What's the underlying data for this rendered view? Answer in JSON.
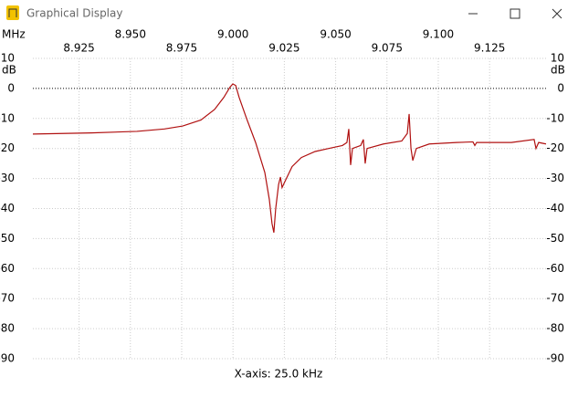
{
  "window": {
    "title": "Graphical Display"
  },
  "chart_data": {
    "type": "line",
    "x_label": "MHz",
    "y_label": "dB",
    "annotation": "X-axis: 25.0 kHz",
    "xlim": [
      8.9025,
      9.1525
    ],
    "xticks": [
      {
        "value": 8.925,
        "label": "8.925"
      },
      {
        "value": 8.95,
        "label": "8.950"
      },
      {
        "value": 8.975,
        "label": "8.975"
      },
      {
        "value": 9,
        "label": "9.000"
      },
      {
        "value": 9.025,
        "label": "9.025"
      },
      {
        "value": 9.05,
        "label": "9.050"
      },
      {
        "value": 9.075,
        "label": "9.075"
      },
      {
        "value": 9.1,
        "label": "9.100"
      },
      {
        "value": 9.125,
        "label": "9.125"
      }
    ],
    "ylim": [
      -90,
      10
    ],
    "yticks": [
      10,
      0,
      -10,
      -20,
      -30,
      -40,
      -50,
      -60,
      -70,
      -80,
      -90
    ],
    "grid": true,
    "series": [
      {
        "color": "#b01010",
        "x": [
          8.9025,
          8.931,
          8.9532,
          8.9666,
          8.9755,
          8.9844,
          8.991,
          8.9955,
          8.9986,
          8.9999,
          9.0013,
          9.003,
          9.0066,
          9.011,
          9.0155,
          9.0177,
          9.019,
          9.0199,
          9.0208,
          9.0222,
          9.0231,
          9.0239,
          9.0253,
          9.0288,
          9.0333,
          9.04,
          9.0466,
          9.0533,
          9.0555,
          9.0564,
          9.0573,
          9.0582,
          9.0622,
          9.0635,
          9.0644,
          9.0653,
          9.0733,
          9.0822,
          9.0849,
          9.0858,
          9.0867,
          9.0876,
          9.0893,
          9.0956,
          9.1089,
          9.1169,
          9.1178,
          9.1187,
          9.1356,
          9.1467,
          9.1476,
          9.1489,
          9.1525
        ],
        "values": [
          -15.2,
          -14.8,
          -14.3,
          -13.5,
          -12.5,
          -10.5,
          -7,
          -3,
          0.5,
          1.5,
          1,
          -3,
          -10,
          -18,
          -28,
          -37,
          -45,
          -48,
          -40,
          -32,
          -29.5,
          -33,
          -31,
          -26,
          -23,
          -21,
          -20,
          -19,
          -18,
          -13.5,
          -25.5,
          -20,
          -19,
          -17,
          -25,
          -20,
          -18.5,
          -17.5,
          -15,
          -8.5,
          -20,
          -24,
          -20,
          -18.5,
          -18,
          -17.8,
          -19,
          -18,
          -18,
          -17,
          -20,
          -18,
          -18.5
        ]
      }
    ]
  }
}
